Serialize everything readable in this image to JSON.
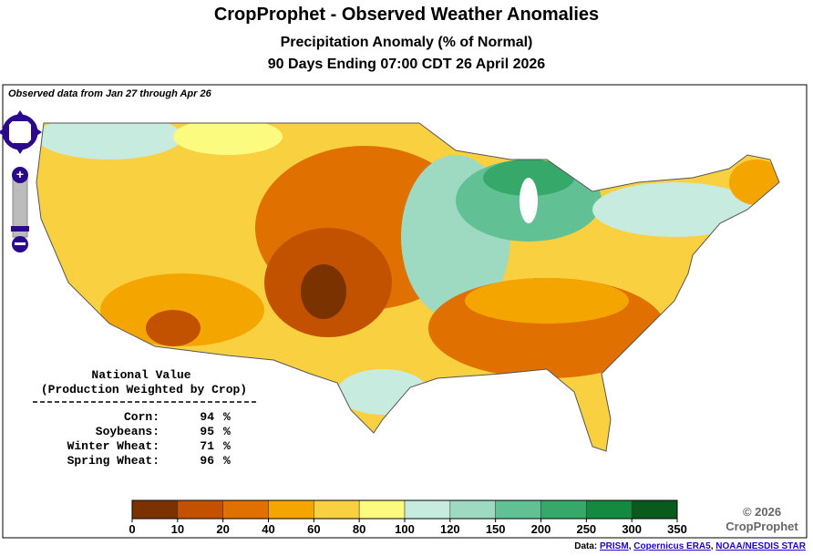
{
  "header": {
    "title": "CropProphet - Observed Weather Anomalies",
    "subtitle": "Precipitation Anomaly (% of Normal)",
    "period": "90 Days Ending 07:00 CDT 26 April 2026"
  },
  "map": {
    "note": "Observed data from Jan 27 through Apr 26"
  },
  "national": {
    "title": "National Value",
    "subtitle": "(Production Weighted by Crop)",
    "unit": "%",
    "rows": [
      {
        "crop": "Corn:",
        "value": 94
      },
      {
        "crop": "Soybeans:",
        "value": 95
      },
      {
        "crop": "Winter Wheat:",
        "value": 71
      },
      {
        "crop": "Spring Wheat:",
        "value": 96
      }
    ]
  },
  "legend": {
    "ticks": [
      0,
      10,
      20,
      40,
      60,
      80,
      100,
      120,
      150,
      200,
      250,
      300,
      350
    ],
    "colors": [
      "#7a3300",
      "#c25200",
      "#e07000",
      "#f5a500",
      "#f8d040",
      "#fbfb80",
      "#c8ebe0",
      "#9ed9c2",
      "#62c095",
      "#35a86a",
      "#138a3f",
      "#0a5a1e"
    ]
  },
  "copyright": "© 2026",
  "brand": "CropProphet",
  "footer": {
    "label": "Data:",
    "sources": [
      "PRISM",
      "Copernicus ERA5",
      "NOAA/NESDIS STAR"
    ]
  }
}
